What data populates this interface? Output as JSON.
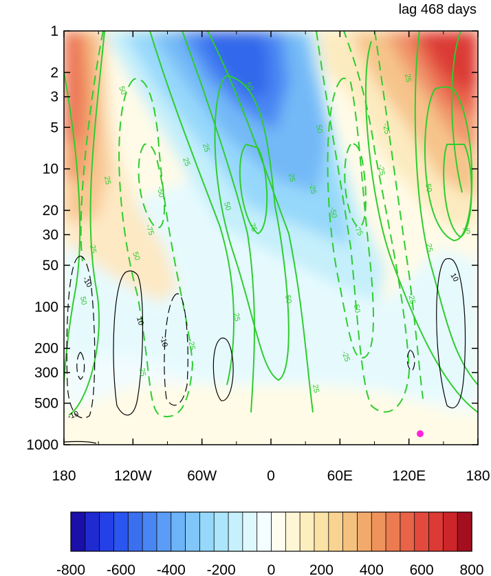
{
  "chart_data": {
    "type": "heatmap",
    "title": "lag 468 days",
    "xlabel": "",
    "ylabel": "",
    "x_ticks": [
      "180",
      "120W",
      "60W",
      "0",
      "60E",
      "120E",
      "180"
    ],
    "y_ticks": [
      "1",
      "2",
      "3",
      "5",
      "10",
      "20",
      "30",
      "50",
      "100",
      "200",
      "300",
      "500",
      "1000"
    ],
    "y_scale": "log",
    "y_inverted": true,
    "xlim": [
      -180,
      180
    ],
    "ylim": [
      1000,
      1
    ],
    "colorbar": {
      "orientation": "horizontal",
      "ticks": [
        "-800",
        "-600",
        "-400",
        "-200",
        "0",
        "200",
        "400",
        "600",
        "800"
      ],
      "range": [
        -800,
        800
      ],
      "colors": [
        "#1a0fa8",
        "#1f2ad1",
        "#2440e6",
        "#2a56ef",
        "#3a6ff0",
        "#4a86f3",
        "#5a9cf6",
        "#6cb3f8",
        "#80c6f9",
        "#96d8fb",
        "#ace6fc",
        "#c6f0fd",
        "#def8fe",
        "#f4fdff",
        "#fffcf0",
        "#fff6d6",
        "#fdeebe",
        "#fbe2a6",
        "#f8d391",
        "#f5c17e",
        "#f2aa6c",
        "#ef935d",
        "#ec7b51",
        "#e86347",
        "#e34a3e",
        "#dc3a35",
        "#cc252a",
        "#a40f1f"
      ]
    },
    "contour_labels": {
      "green": [
        "25",
        "50",
        "75",
        "-25",
        "-50",
        "-75"
      ],
      "black": [
        "10",
        "-10"
      ]
    },
    "colors": {
      "positive_contour": "#2ecc2e",
      "negative_contour_dashed": "#2ecc2e",
      "black_contour": "#000000",
      "marker": "#ff22dd"
    }
  }
}
